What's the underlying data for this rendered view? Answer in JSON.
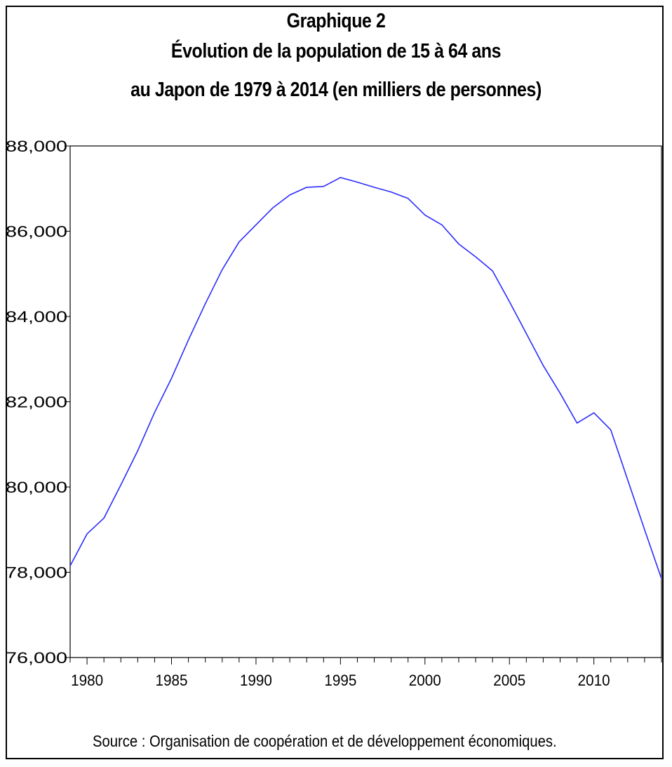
{
  "chart_data": {
    "type": "line",
    "title_lines": [
      "Graphique 2",
      "Évolution de la population de 15 à 64 ans",
      "au Japon de 1979 à 2014 (en milliers de personnes)"
    ],
    "source": "Source : Organisation de coopération et de développement économiques.",
    "xlabel": "",
    "ylabel": "",
    "xlim": [
      1979,
      2014
    ],
    "ylim": [
      76000,
      88000
    ],
    "yticks": [
      76000,
      78000,
      80000,
      82000,
      84000,
      86000,
      88000
    ],
    "ytick_labels": [
      "76,000",
      "78,000",
      "80,000",
      "82,000",
      "84,000",
      "86,000",
      "88,000"
    ],
    "xticks_labeled": [
      1980,
      1985,
      1990,
      1995,
      2000,
      2005,
      2010
    ],
    "xtick_labels": [
      "1980",
      "1985",
      "1990",
      "1995",
      "2000",
      "2005",
      "2010"
    ],
    "line_color": "#2b2bff",
    "grid": false,
    "x": [
      1979,
      1980,
      1981,
      1982,
      1983,
      1984,
      1985,
      1986,
      1987,
      1988,
      1989,
      1990,
      1991,
      1992,
      1993,
      1994,
      1995,
      1996,
      1997,
      1998,
      1999,
      2000,
      2001,
      2002,
      2003,
      2004,
      2005,
      2006,
      2007,
      2008,
      2009,
      2010,
      2011,
      2012,
      2013,
      2014
    ],
    "y": [
      78150,
      78900,
      79270,
      80050,
      80850,
      81750,
      82550,
      83450,
      84300,
      85100,
      85750,
      86150,
      86550,
      86850,
      87030,
      87050,
      87260,
      87150,
      87030,
      86920,
      86770,
      86380,
      86150,
      85700,
      85400,
      85070,
      84350,
      83600,
      82850,
      82200,
      81500,
      81740,
      81340,
      80170,
      79000,
      77850
    ]
  }
}
